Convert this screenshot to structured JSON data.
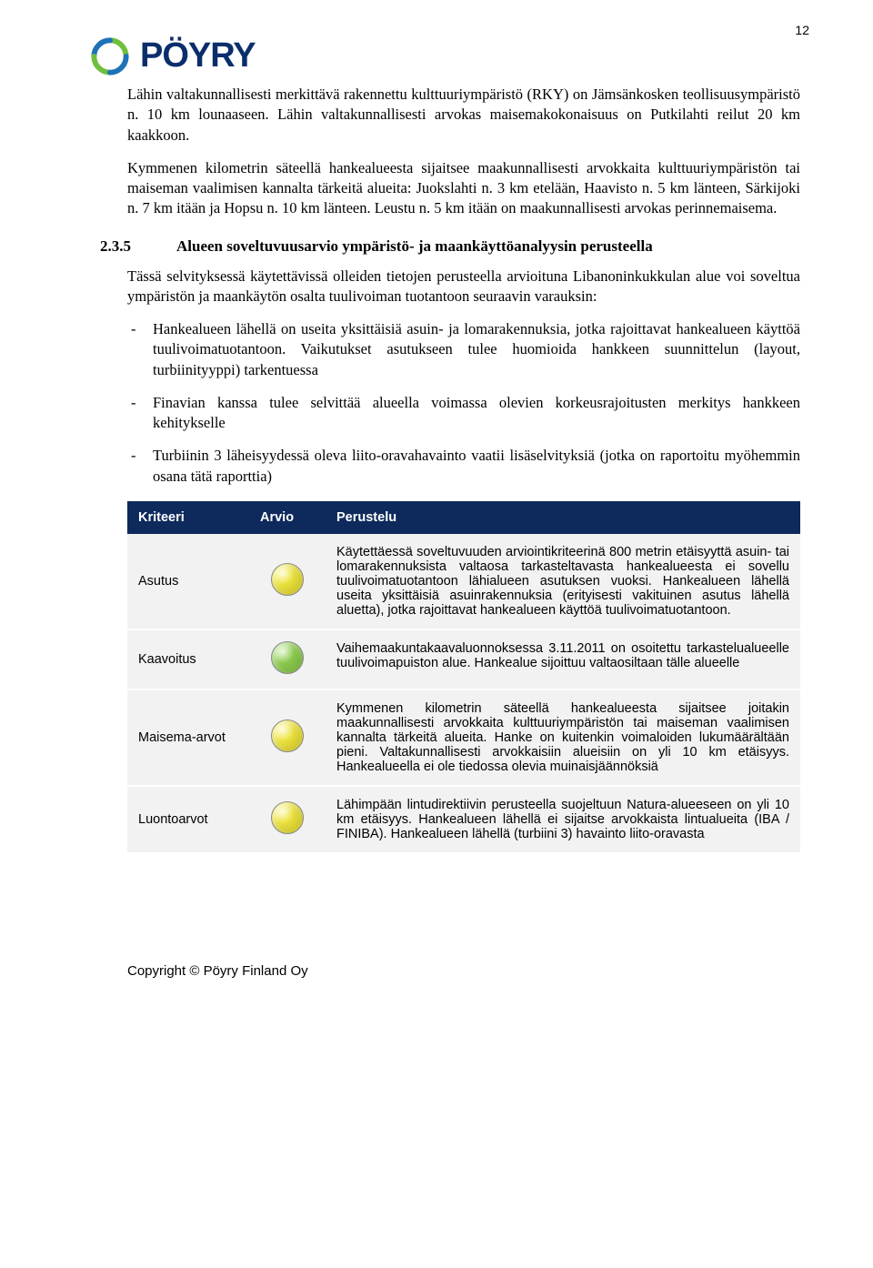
{
  "page_number": "12",
  "logo": {
    "text": "PÖYRY",
    "text_color": "#0a2e6b",
    "arc_green": "#6fbf3f",
    "arc_blue": "#1d72b8"
  },
  "intro_paragraphs": [
    "Lähin valtakunnallisesti merkittävä rakennettu kulttuuriympäristö (RKY) on Jämsänkosken teollisuusympäristö n. 10 km lounaaseen. Lähin valtakunnallisesti arvokas maisemakokonaisuus on Putkilahti reilut 20 km kaakkoon.",
    "Kymmenen kilometrin säteellä hankealueesta sijaitsee maakunnallisesti arvokkaita kulttuuriympäristön tai maiseman vaalimisen kannalta tärkeitä alueita: Juokslahti n. 3 km etelään, Haavisto n. 5 km länteen, Särkijoki n. 7 km itään ja Hopsu n. 10 km länteen. Leustu n. 5 km itään on maakunnallisesti arvokas perinnemaisema."
  ],
  "section": {
    "number": "2.3.5",
    "title": "Alueen soveltuvuusarvio ympäristö- ja maankäyttöanalyysin perusteella"
  },
  "section_intro": "Tässä selvityksessä käytettävissä olleiden tietojen perusteella arvioituna Libanoninkukkulan alue voi soveltua ympäristön ja maankäytön osalta tuulivoiman tuotantoon seuraavin varauksin:",
  "bullets": [
    "Hankealueen lähellä on useita yksittäisiä asuin- ja lomarakennuksia, jotka rajoittavat hankealueen käyttöä tuulivoimatuotantoon. Vaikutukset asutukseen tulee huomioida hankkeen suunnittelun (layout, turbiinityyppi) tarkentuessa",
    "Finavian kanssa tulee selvittää alueella voimassa olevien korkeusrajoitusten merkitys hankkeen kehitykselle",
    "Turbiinin 3 läheisyydessä oleva liito-oravahavainto vaatii lisäselvityksiä (jotka on raportoitu myöhemmin osana tätä raporttia)"
  ],
  "table": {
    "header_bg": "#0e2a5c",
    "row_bg": "#f2f2f2",
    "columns": [
      "Kriteeri",
      "Arvio",
      "Perustelu"
    ],
    "rows": [
      {
        "kriteeri": "Asutus",
        "dot_color": "#f2e83b",
        "perustelu": "Käytettäessä soveltuvuuden arviointikriteerinä 800 metrin etäisyyttä asuin- tai lomarakennuksista valtaosa tarkasteltavasta hankealueesta ei sovellu tuulivoimatuotantoon lähialueen asutuksen vuoksi. Hankealueen lähellä useita yksittäisiä asuinrakennuksia (erityisesti vakituinen asutus lähellä aluetta), jotka rajoittavat hankealueen käyttöä tuulivoimatuotantoon."
      },
      {
        "kriteeri": "Kaavoitus",
        "dot_color": "#8fd14f",
        "perustelu": "Vaihemaakuntakaavaluonnoksessa 3.11.2011 on osoitettu tarkastelualueelle tuulivoimapuiston alue. Hankealue sijoittuu valtaosiltaan tälle alueelle"
      },
      {
        "kriteeri": "Maisema-arvot",
        "dot_color": "#f2e83b",
        "perustelu": "Kymmenen kilometrin säteellä hankealueesta sijaitsee joitakin maakunnallisesti arvokkaita kulttuuriympäristön tai maiseman vaalimisen kannalta tärkeitä alueita.  Hanke on kuitenkin voimaloiden lukumäärältään pieni. Valtakunnallisesti arvokkaisiin alueisiin on yli 10 km etäisyys. Hankealueella ei ole tiedossa olevia muinaisjäännöksiä"
      },
      {
        "kriteeri": "Luontoarvot",
        "dot_color": "#f2e83b",
        "perustelu": "Lähimpään lintudirektiivin perusteella suojeltuun Natura-alueeseen on yli 10 km etäisyys. Hankealueen lähellä ei sijaitse arvokkaista lintualueita (IBA / FINIBA). Hankealueen lähellä (turbiini 3) havainto liito-oravasta"
      }
    ]
  },
  "footer": "Copyright © Pöyry Finland Oy"
}
